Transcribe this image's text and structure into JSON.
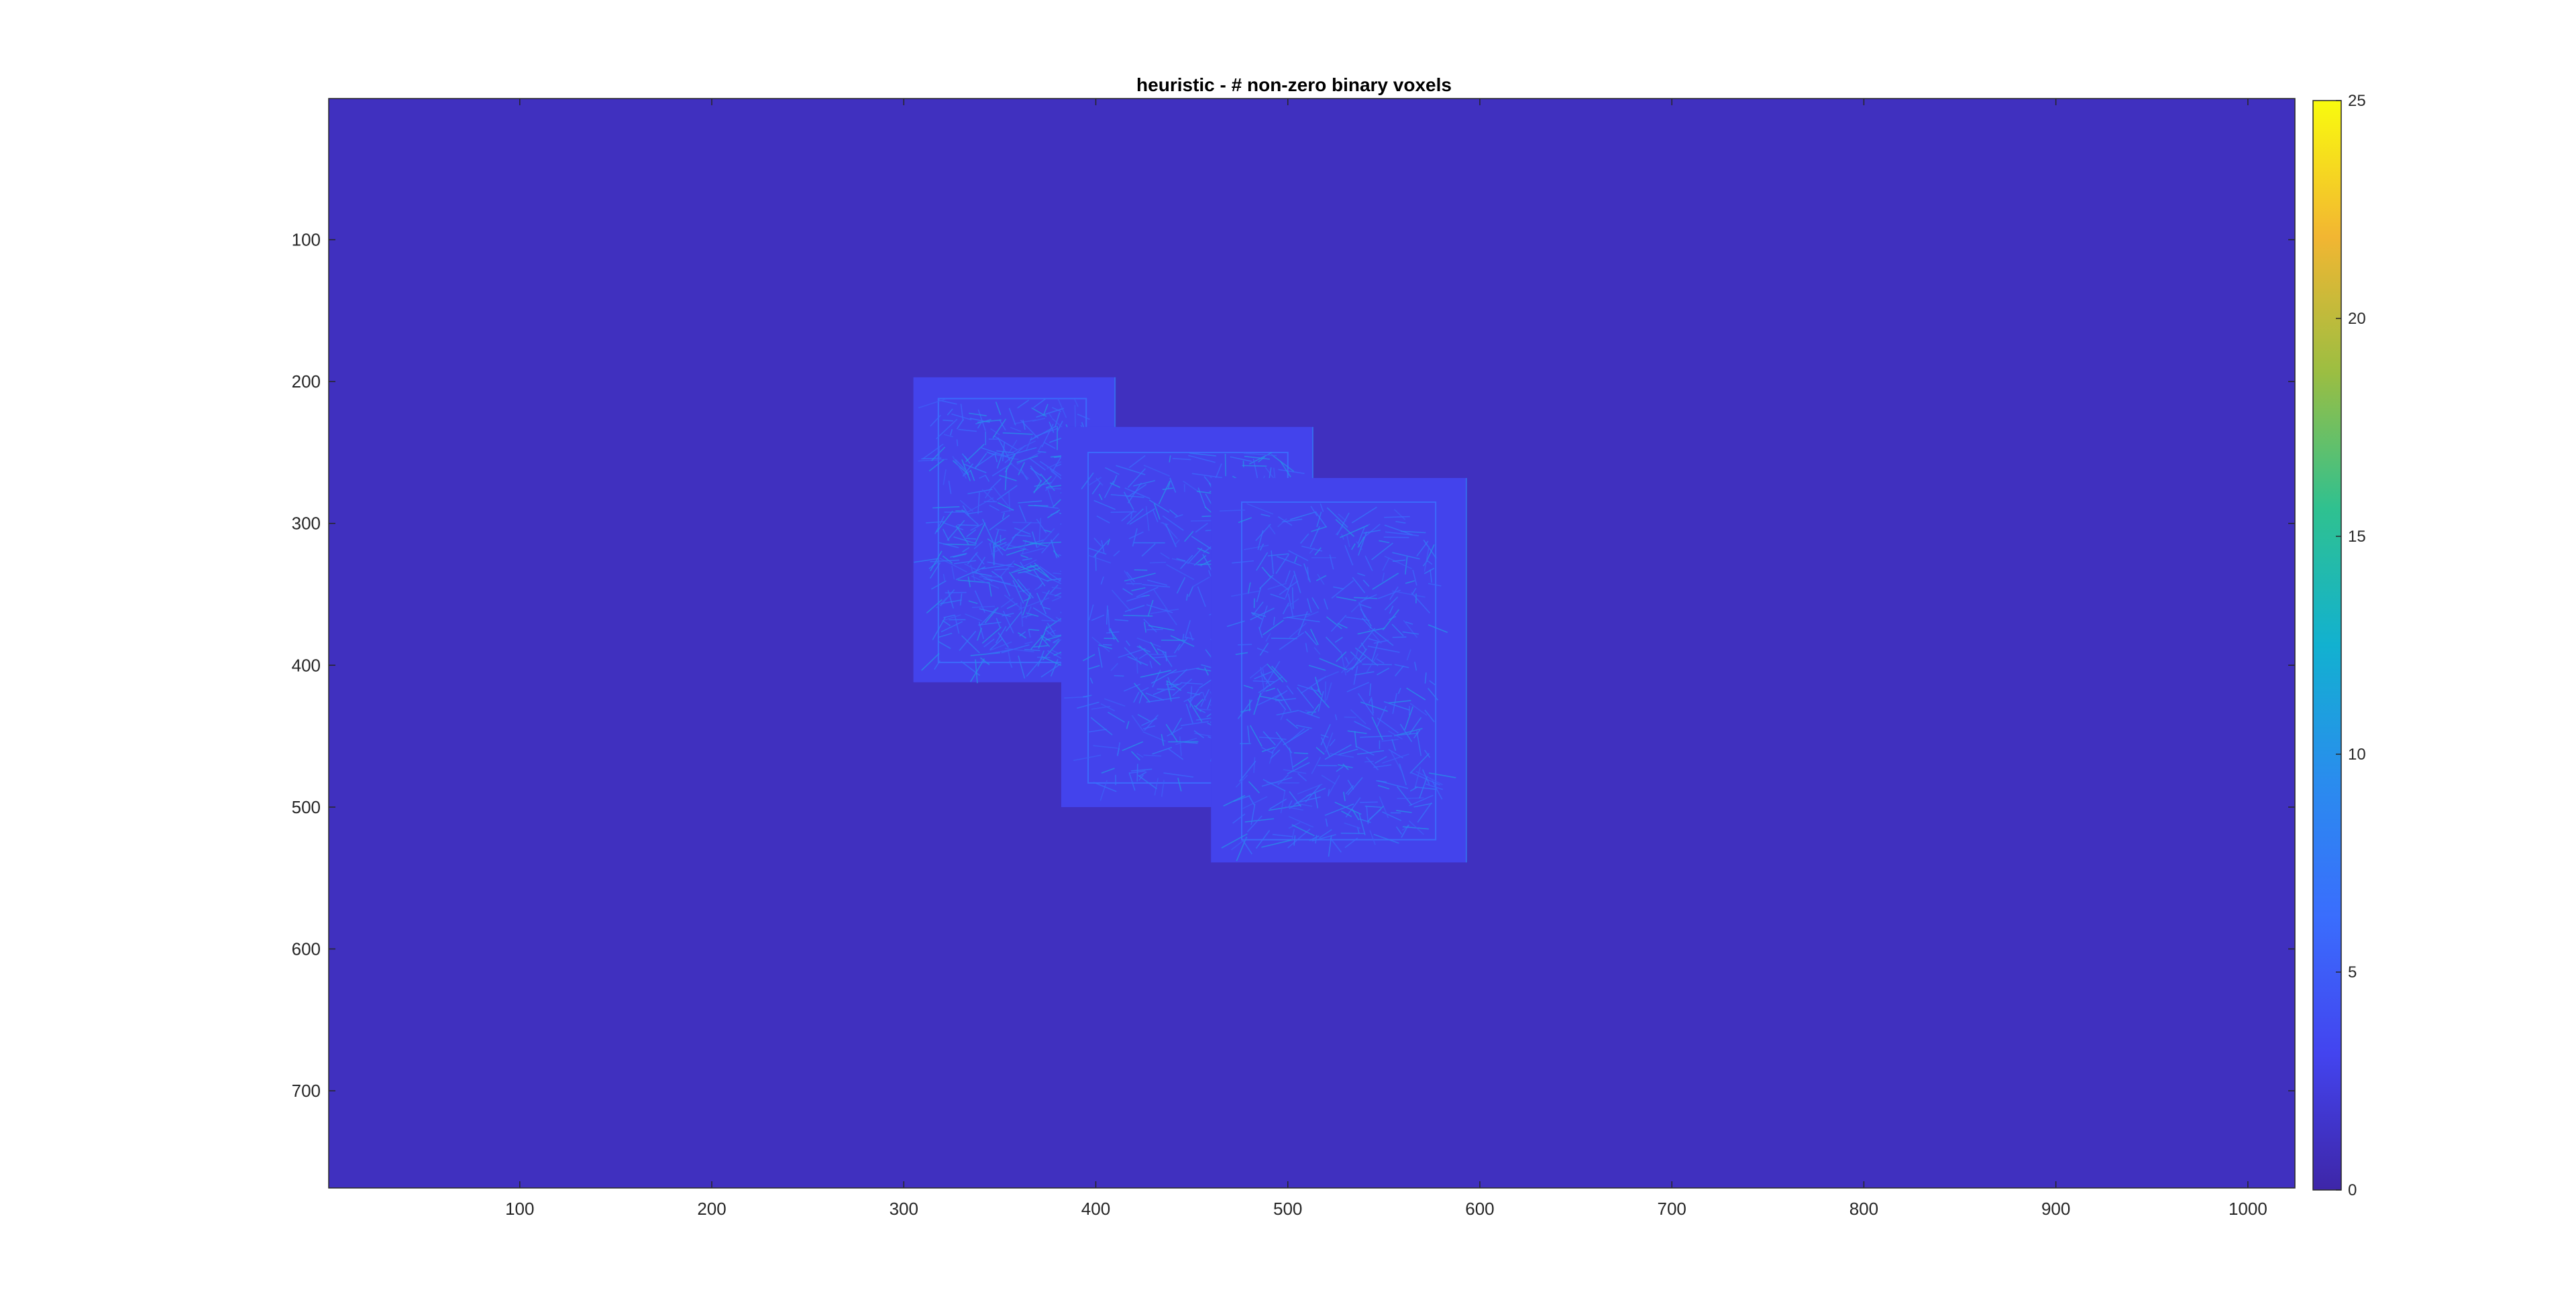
{
  "chart_data": {
    "type": "heatmap",
    "title": "heuristic - # non-zero binary voxels",
    "xlabel": "",
    "ylabel": "",
    "x_range": [
      0.5,
      1024.5
    ],
    "y_range": [
      0.5,
      768.5
    ],
    "y_reversed": true,
    "x_ticks": [
      100,
      200,
      300,
      400,
      500,
      600,
      700,
      800,
      900,
      1000
    ],
    "y_ticks": [
      100,
      200,
      300,
      400,
      500,
      600,
      700
    ],
    "x_tick_labels": [
      "100",
      "200",
      "300",
      "400",
      "500",
      "600",
      "700",
      "800",
      "900",
      "1000"
    ],
    "y_tick_labels": [
      "100",
      "200",
      "300",
      "400",
      "500",
      "600",
      "700"
    ],
    "colormap": "parula",
    "clim": [
      0,
      25
    ],
    "colorbar_ticks": [
      0,
      5,
      10,
      15,
      20,
      25
    ],
    "colorbar_tick_labels": [
      "0",
      "5",
      "10",
      "15",
      "20",
      "25"
    ],
    "background_value": 1,
    "cards": [
      {
        "name": "card-1",
        "x": [
          305,
          410
        ],
        "y": [
          197,
          412
        ],
        "fill_value": 3,
        "inner_frame": [
          318,
          395,
          212,
          398
        ]
      },
      {
        "name": "card-2",
        "x": [
          382,
          513
        ],
        "y": [
          232,
          500
        ],
        "fill_value": 3,
        "inner_frame": [
          396,
          500,
          250,
          483
        ]
      },
      {
        "name": "card-3",
        "x": [
          460,
          593
        ],
        "y": [
          268,
          539
        ],
        "fill_value": 3,
        "inner_frame": [
          476,
          577,
          285,
          523
        ]
      }
    ],
    "edge_values": [
      5,
      6,
      7,
      8,
      10
    ]
  }
}
